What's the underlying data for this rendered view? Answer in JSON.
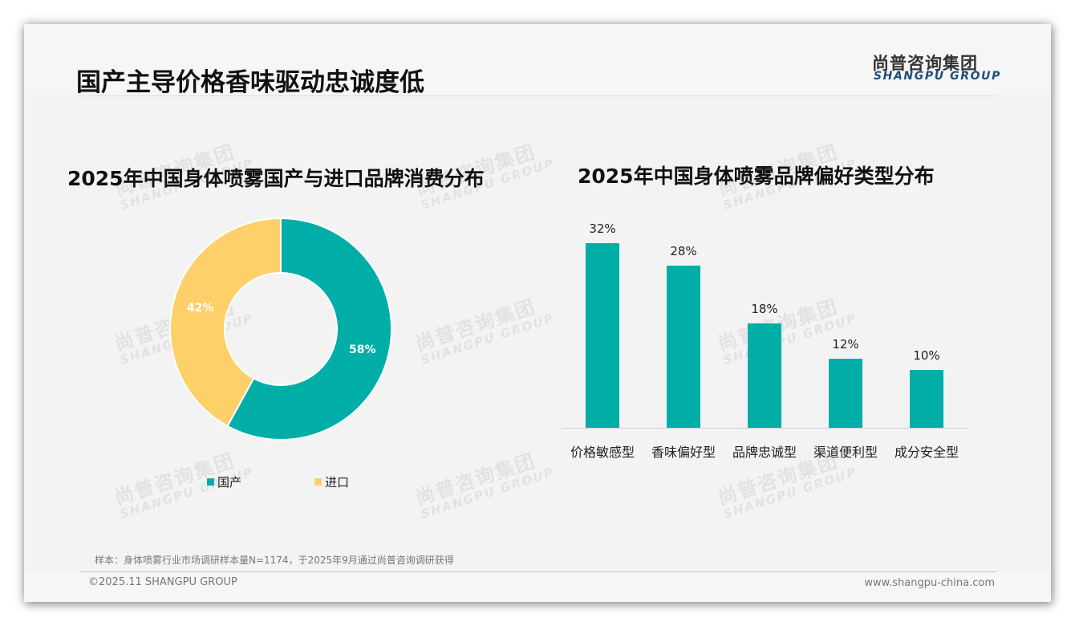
{
  "header": {
    "title": "国产主导价格香味驱动忠诚度低",
    "logo_cn": "尚普咨询集团",
    "logo_en": "SHANGPU GROUP"
  },
  "watermark": {
    "cn": "尚普咨询集团",
    "en": "SHANGPU GROUP"
  },
  "left_chart": {
    "title": "2025年中国身体喷雾国产与进口品牌消费分布",
    "slices": [
      {
        "label": "国产",
        "value": 58,
        "display": "58%",
        "color": "#00aea8"
      },
      {
        "label": "进口",
        "value": 42,
        "display": "42%",
        "color": "#fdd06a"
      }
    ]
  },
  "right_chart": {
    "title": "2025年中国身体喷雾品牌偏好类型分布",
    "bars": [
      {
        "label": "价格敏感型",
        "value": 32,
        "display": "32%"
      },
      {
        "label": "香味偏好型",
        "value": 28,
        "display": "28%"
      },
      {
        "label": "品牌忠诚型",
        "value": 18,
        "display": "18%"
      },
      {
        "label": "渠道便利型",
        "value": 12,
        "display": "12%"
      },
      {
        "label": "成分安全型",
        "value": 10,
        "display": "10%"
      }
    ],
    "bar_color": "#00aea8"
  },
  "footer": {
    "note": "样本：身体喷雾行业市场调研样本量N=1174，于2025年9月通过尚普咨询调研获得",
    "copyright": "©2025.11 SHANGPU GROUP",
    "website": "www.shangpu-china.com"
  },
  "chart_data": [
    {
      "type": "pie",
      "title": "2025年中国身体喷雾国产与进口品牌消费分布",
      "categories": [
        "国产",
        "进口"
      ],
      "values": [
        58,
        42
      ],
      "unit": "%",
      "donut": true,
      "colors": [
        "#00aea8",
        "#fdd06a"
      ],
      "legend_position": "bottom"
    },
    {
      "type": "bar",
      "title": "2025年中国身体喷雾品牌偏好类型分布",
      "categories": [
        "价格敏感型",
        "香味偏好型",
        "品牌忠诚型",
        "渠道便利型",
        "成分安全型"
      ],
      "values": [
        32,
        28,
        18,
        12,
        10
      ],
      "unit": "%",
      "xlabel": "",
      "ylabel": "",
      "ylim": [
        0,
        35
      ],
      "grid": false,
      "data_labels": true,
      "color": "#00aea8"
    }
  ]
}
